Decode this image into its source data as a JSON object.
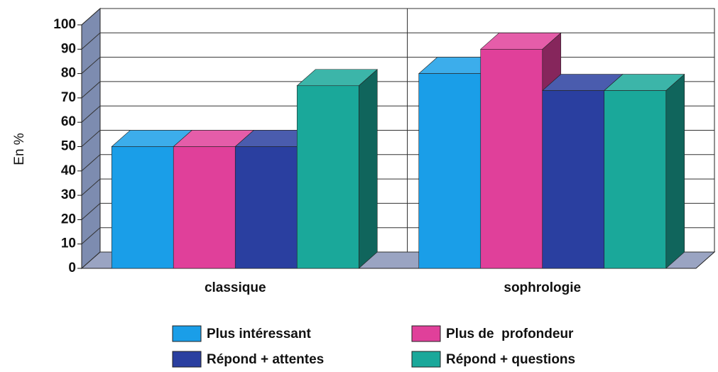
{
  "chart_data": {
    "type": "bar3d",
    "y_label": "En %",
    "categories": [
      "classique",
      "sophrologie"
    ],
    "series": [
      {
        "name": "Plus intéressant",
        "color": "#1a9ee8",
        "values": [
          50,
          80
        ]
      },
      {
        "name": "Plus de  profondeur",
        "color": "#e0409a",
        "values": [
          50,
          90
        ]
      },
      {
        "name": "Répond + attentes",
        "color": "#2a3fa0",
        "values": [
          50,
          73
        ]
      },
      {
        "name": "Répond + questions",
        "color": "#1aa89a",
        "values": [
          75,
          73
        ]
      }
    ],
    "ylim": [
      0,
      100
    ],
    "yticks": [
      0,
      10,
      20,
      30,
      40,
      50,
      60,
      70,
      80,
      90,
      100
    ],
    "grid": true
  }
}
